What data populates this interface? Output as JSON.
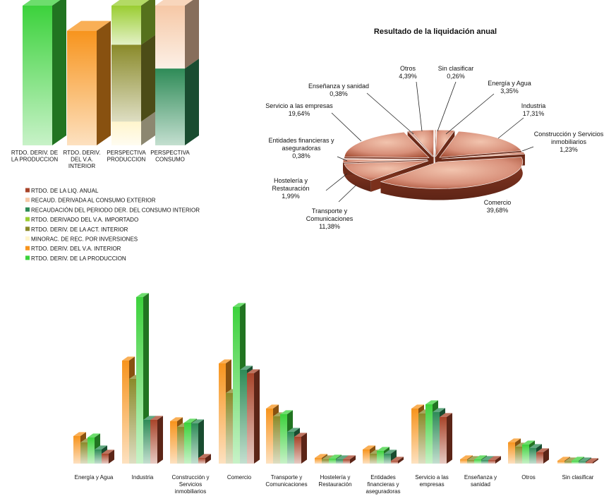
{
  "colors": {
    "rtdo_liq_anual": "#a8442a",
    "recaud_consumo_exterior": "#f6c8a6",
    "recaud_periodo": "#2e8b57",
    "rtdo_va_importado": "#9acd32",
    "rtdo_act_interior": "#8a8a2a",
    "minorac_rec": "#fff5cc",
    "rtdo_va_interior": "#f7941d",
    "rtdo_produccion": "#3cd23c"
  },
  "chart_data": [
    {
      "id": "stack-chart",
      "type": "bar",
      "stacked": true,
      "categories": [
        "RTDO. DERIV. DE LA PRODUCCION",
        "RTDO. DERIV. DEL V.A. INTERIOR",
        "PERSPECTIVA PRODUCCION",
        "PERSPECTIVA CONSUMO"
      ],
      "series": [
        {
          "name": "RTDO. DERIV. DE LA PRODUCCION",
          "color_key": "rtdo_produccion",
          "values": [
            100,
            0,
            0,
            0
          ]
        },
        {
          "name": "RTDO. DERIV. DEL V.A. INTERIOR",
          "color_key": "rtdo_va_interior",
          "values": [
            0,
            82,
            0,
            0
          ]
        },
        {
          "name": "MINORAC. DE REC. POR INVERSIONES",
          "color_key": "minorac_rec",
          "values": [
            0,
            0,
            17,
            0
          ]
        },
        {
          "name": "RTDO. DERIV. DE LA ACT. INTERIOR",
          "color_key": "rtdo_act_interior",
          "values": [
            0,
            0,
            55,
            0
          ]
        },
        {
          "name": "RTDO. DERIVADO DEL V.A. IMPORTADO",
          "color_key": "rtdo_va_importado",
          "values": [
            0,
            0,
            28,
            0
          ]
        },
        {
          "name": "RECAUDACIÓN DEL PERIODO DER. DEL CONSUMO INTERIOR",
          "color_key": "recaud_periodo",
          "values": [
            0,
            0,
            0,
            55
          ]
        },
        {
          "name": "RECAUD. DERIVADA AL CONSUMO EXTERIOR",
          "color_key": "recaud_consumo_exterior",
          "values": [
            0,
            0,
            0,
            45
          ]
        }
      ],
      "ylim": [
        0,
        100
      ],
      "legend_position": "bottom-left",
      "legend": [
        {
          "label": "RTDO. DE LA LIQ. ANUAL",
          "color_key": "rtdo_liq_anual"
        },
        {
          "label": "RECAUD. DERIVADA AL CONSUMO EXTERIOR",
          "color_key": "recaud_consumo_exterior"
        },
        {
          "label": "RECAUDACIÓN DEL PERIODO DER. DEL CONSUMO INTERIOR",
          "color_key": "recaud_periodo"
        },
        {
          "label": "RTDO. DERIVADO DEL V.A. IMPORTADO",
          "color_key": "rtdo_va_importado"
        },
        {
          "label": "RTDO. DERIV. DE LA ACT. INTERIOR",
          "color_key": "rtdo_act_interior"
        },
        {
          "label": "MINORAC. DE REC. POR INVERSIONES",
          "color_key": "minorac_rec"
        },
        {
          "label": "RTDO. DERIV. DEL V.A. INTERIOR",
          "color_key": "rtdo_va_interior"
        },
        {
          "label": "RTDO. DERIV. DE LA PRODUCCION",
          "color_key": "rtdo_produccion"
        }
      ]
    },
    {
      "id": "pie-chart",
      "type": "pie",
      "title": "Resultado de la liquidación anual",
      "slices": [
        {
          "label": "Sin clasificar",
          "value": 0.26,
          "text": "0,26%"
        },
        {
          "label": "Energía y Agua",
          "value": 3.35,
          "text": "3,35%"
        },
        {
          "label": "Industria",
          "value": 17.31,
          "text": "17,31%"
        },
        {
          "label": "Construcción y Servicios inmobiliarios",
          "value": 1.23,
          "text": "1,23%"
        },
        {
          "label": "Comercio",
          "value": 39.68,
          "text": "39,68%"
        },
        {
          "label": "Transporte y Comunicaciones",
          "value": 11.38,
          "text": "11,38%"
        },
        {
          "label": "Hostelería y Restauración",
          "value": 1.99,
          "text": "1,99%"
        },
        {
          "label": "Entidades financieras y aseguradoras",
          "value": 0.38,
          "text": "0,38%"
        },
        {
          "label": "Servicio a las empresas",
          "value": 19.64,
          "text": "19,64%"
        },
        {
          "label": "Enseñanza y sanidad",
          "value": 0.38,
          "text": "0,38%"
        },
        {
          "label": "Otros",
          "value": 4.39,
          "text": "4,39%"
        }
      ]
    },
    {
      "id": "grouped-chart",
      "type": "bar",
      "categories": [
        "Energía y Agua",
        "Industria",
        "Construcción y Servicios inmobiliarios",
        "Comercio",
        "Transporte y Comunicaciones",
        "Hostelería y Restauración",
        "Entidades financieras y aseguradoras",
        "Servicio a las empresas",
        "Enseñanza y sanidad",
        "Otros",
        "Sin clasificar"
      ],
      "series": [
        {
          "name": "RTDO. DERIV. DEL V.A. INTERIOR",
          "color_key": "rtdo_va_interior",
          "values": [
            39,
            146,
            60,
            142,
            78,
            8,
            20,
            78,
            6,
            30,
            4
          ]
        },
        {
          "name": "RTDO. DERIV. DE LA ACT. INTERIOR",
          "color_key": "rtdo_act_interior",
          "values": [
            30,
            120,
            52,
            100,
            67,
            6,
            14,
            71,
            5,
            24,
            3
          ]
        },
        {
          "name": "RTDO. DERIV. DE LA PRODUCCION",
          "color_key": "rtdo_produccion",
          "values": [
            37,
            236,
            58,
            222,
            70,
            7,
            18,
            84,
            6,
            27,
            4
          ]
        },
        {
          "name": "RECAUDACIÓN DEL PERIODO DER. DEL CONSUMO INTERIOR",
          "color_key": "recaud_periodo",
          "values": [
            20,
            62,
            57,
            133,
            45,
            6,
            14,
            73,
            5,
            22,
            3
          ]
        },
        {
          "name": "RTDO. DE LA LIQ. ANUAL",
          "color_key": "rtdo_liq_anual",
          "values": [
            14,
            62,
            8,
            128,
            38,
            6,
            4,
            66,
            5,
            16,
            2
          ]
        }
      ]
    }
  ]
}
